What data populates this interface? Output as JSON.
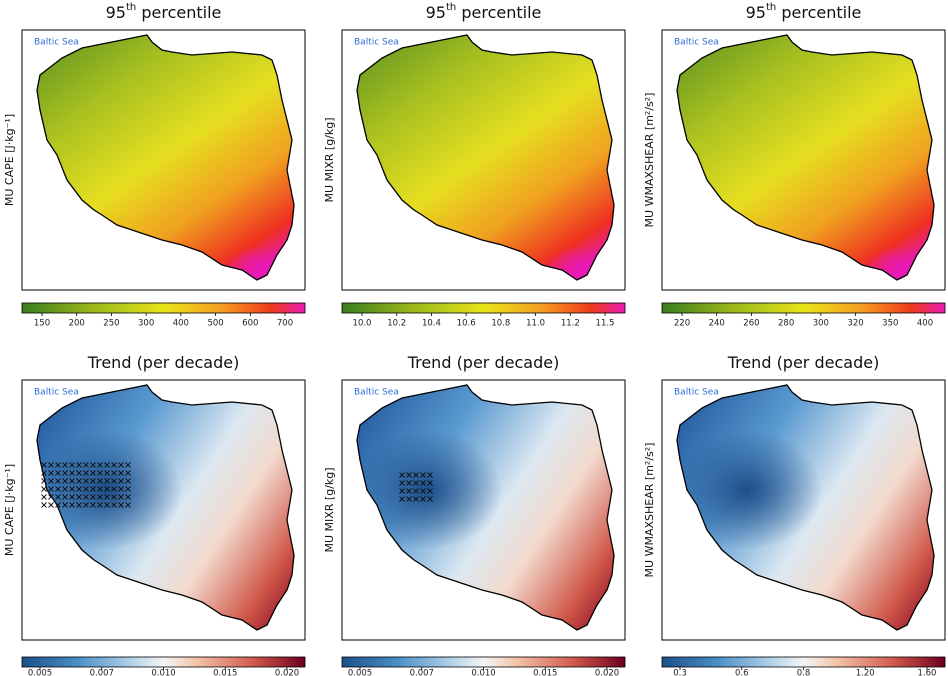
{
  "panels": [
    {
      "title": {
        "base": "95",
        "sup": "th",
        "rest": " percentile"
      },
      "sea_label": "Baltic Sea",
      "y_label": "MU CAPE [J·kg⁻¹]",
      "colorbar_ticks": [
        "150",
        "200",
        "250",
        "300",
        "400",
        "500",
        "600",
        "700"
      ]
    },
    {
      "title": {
        "base": "95",
        "sup": "th",
        "rest": " percentile"
      },
      "sea_label": "Baltic Sea",
      "y_label": "MU MIXR [g/kg]",
      "colorbar_ticks": [
        "10.0",
        "10.2",
        "10.4",
        "10.6",
        "10.8",
        "11.0",
        "11.2",
        "11.5"
      ]
    },
    {
      "title": {
        "base": "95",
        "sup": "th",
        "rest": " percentile"
      },
      "sea_label": "Baltic Sea",
      "y_label": "MU WMAXSHEAR [m²/s²]",
      "colorbar_ticks": [
        "220",
        "240",
        "260",
        "280",
        "300",
        "320",
        "350",
        "400"
      ]
    },
    {
      "title": {
        "base": "Trend (per decade)"
      },
      "sea_label": "Baltic Sea",
      "y_label": "MU CAPE [J·kg⁻¹]",
      "colorbar_ticks": [
        "0.005",
        "0.007",
        "0.010",
        "0.015",
        "0.020"
      ]
    },
    {
      "title": {
        "base": "Trend (per decade)"
      },
      "sea_label": "Baltic Sea",
      "y_label": "MU MIXR [g/kg]",
      "colorbar_ticks": [
        "0.005",
        "0.007",
        "0.010",
        "0.015",
        "0.020"
      ]
    },
    {
      "title": {
        "base": "Trend (per decade)"
      },
      "sea_label": "Baltic Sea",
      "y_label": "MU WMAXSHEAR [m²/s²]",
      "colorbar_ticks": [
        "0.3",
        "0.6",
        "0.8",
        "1.20",
        "1.60"
      ]
    }
  ]
}
